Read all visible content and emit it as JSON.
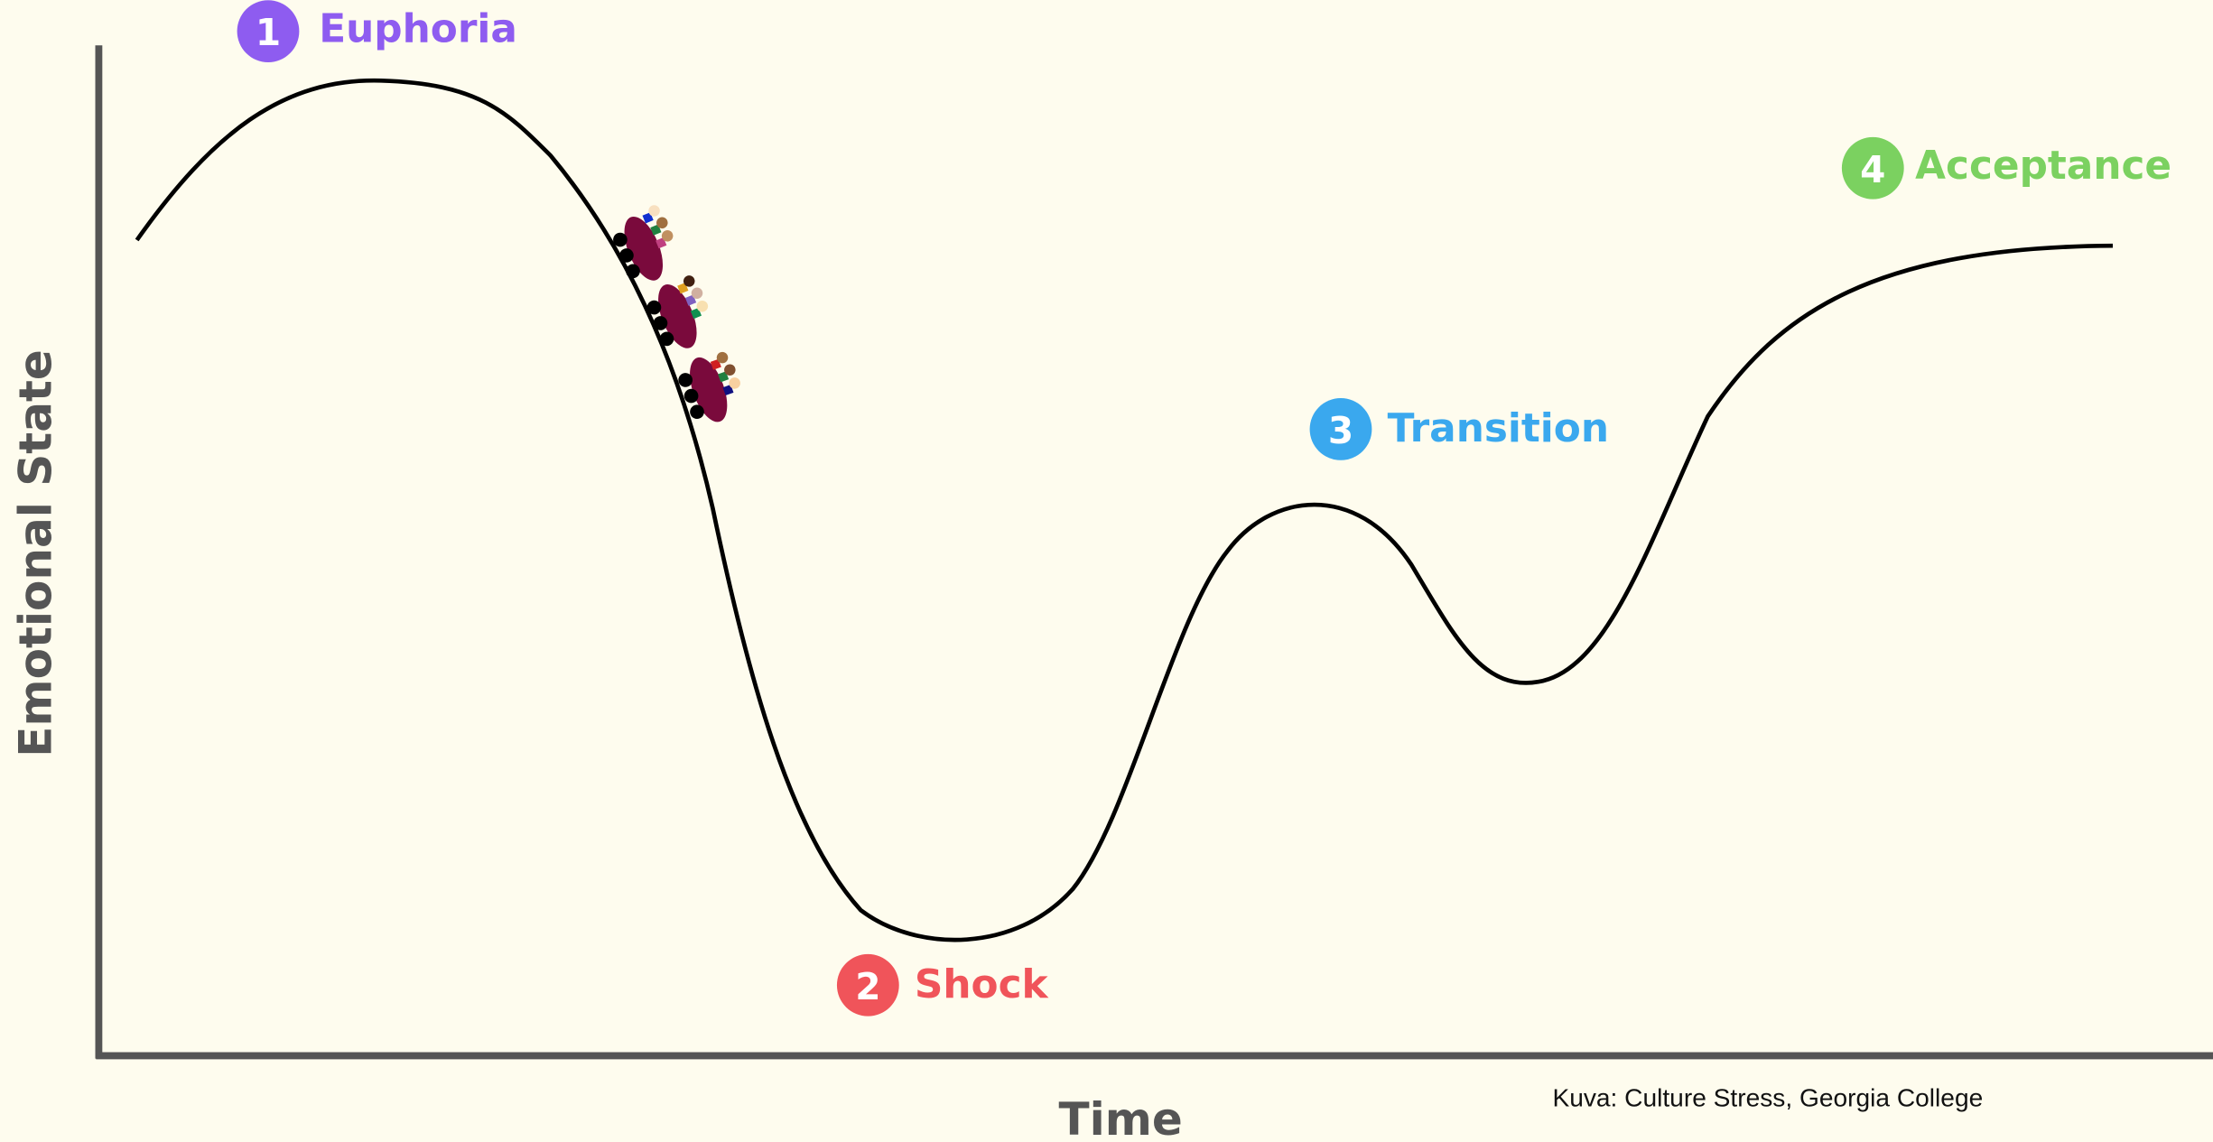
{
  "axes": {
    "x_label": "Time",
    "y_label": "Emotional State"
  },
  "stages": [
    {
      "number": "1",
      "label": "Euphoria"
    },
    {
      "number": "2",
      "label": "Shock"
    },
    {
      "number": "3",
      "label": "Transition"
    },
    {
      "number": "4",
      "label": "Acceptance"
    }
  ],
  "credit": "Kuva: Culture Stress, Georgia College"
}
